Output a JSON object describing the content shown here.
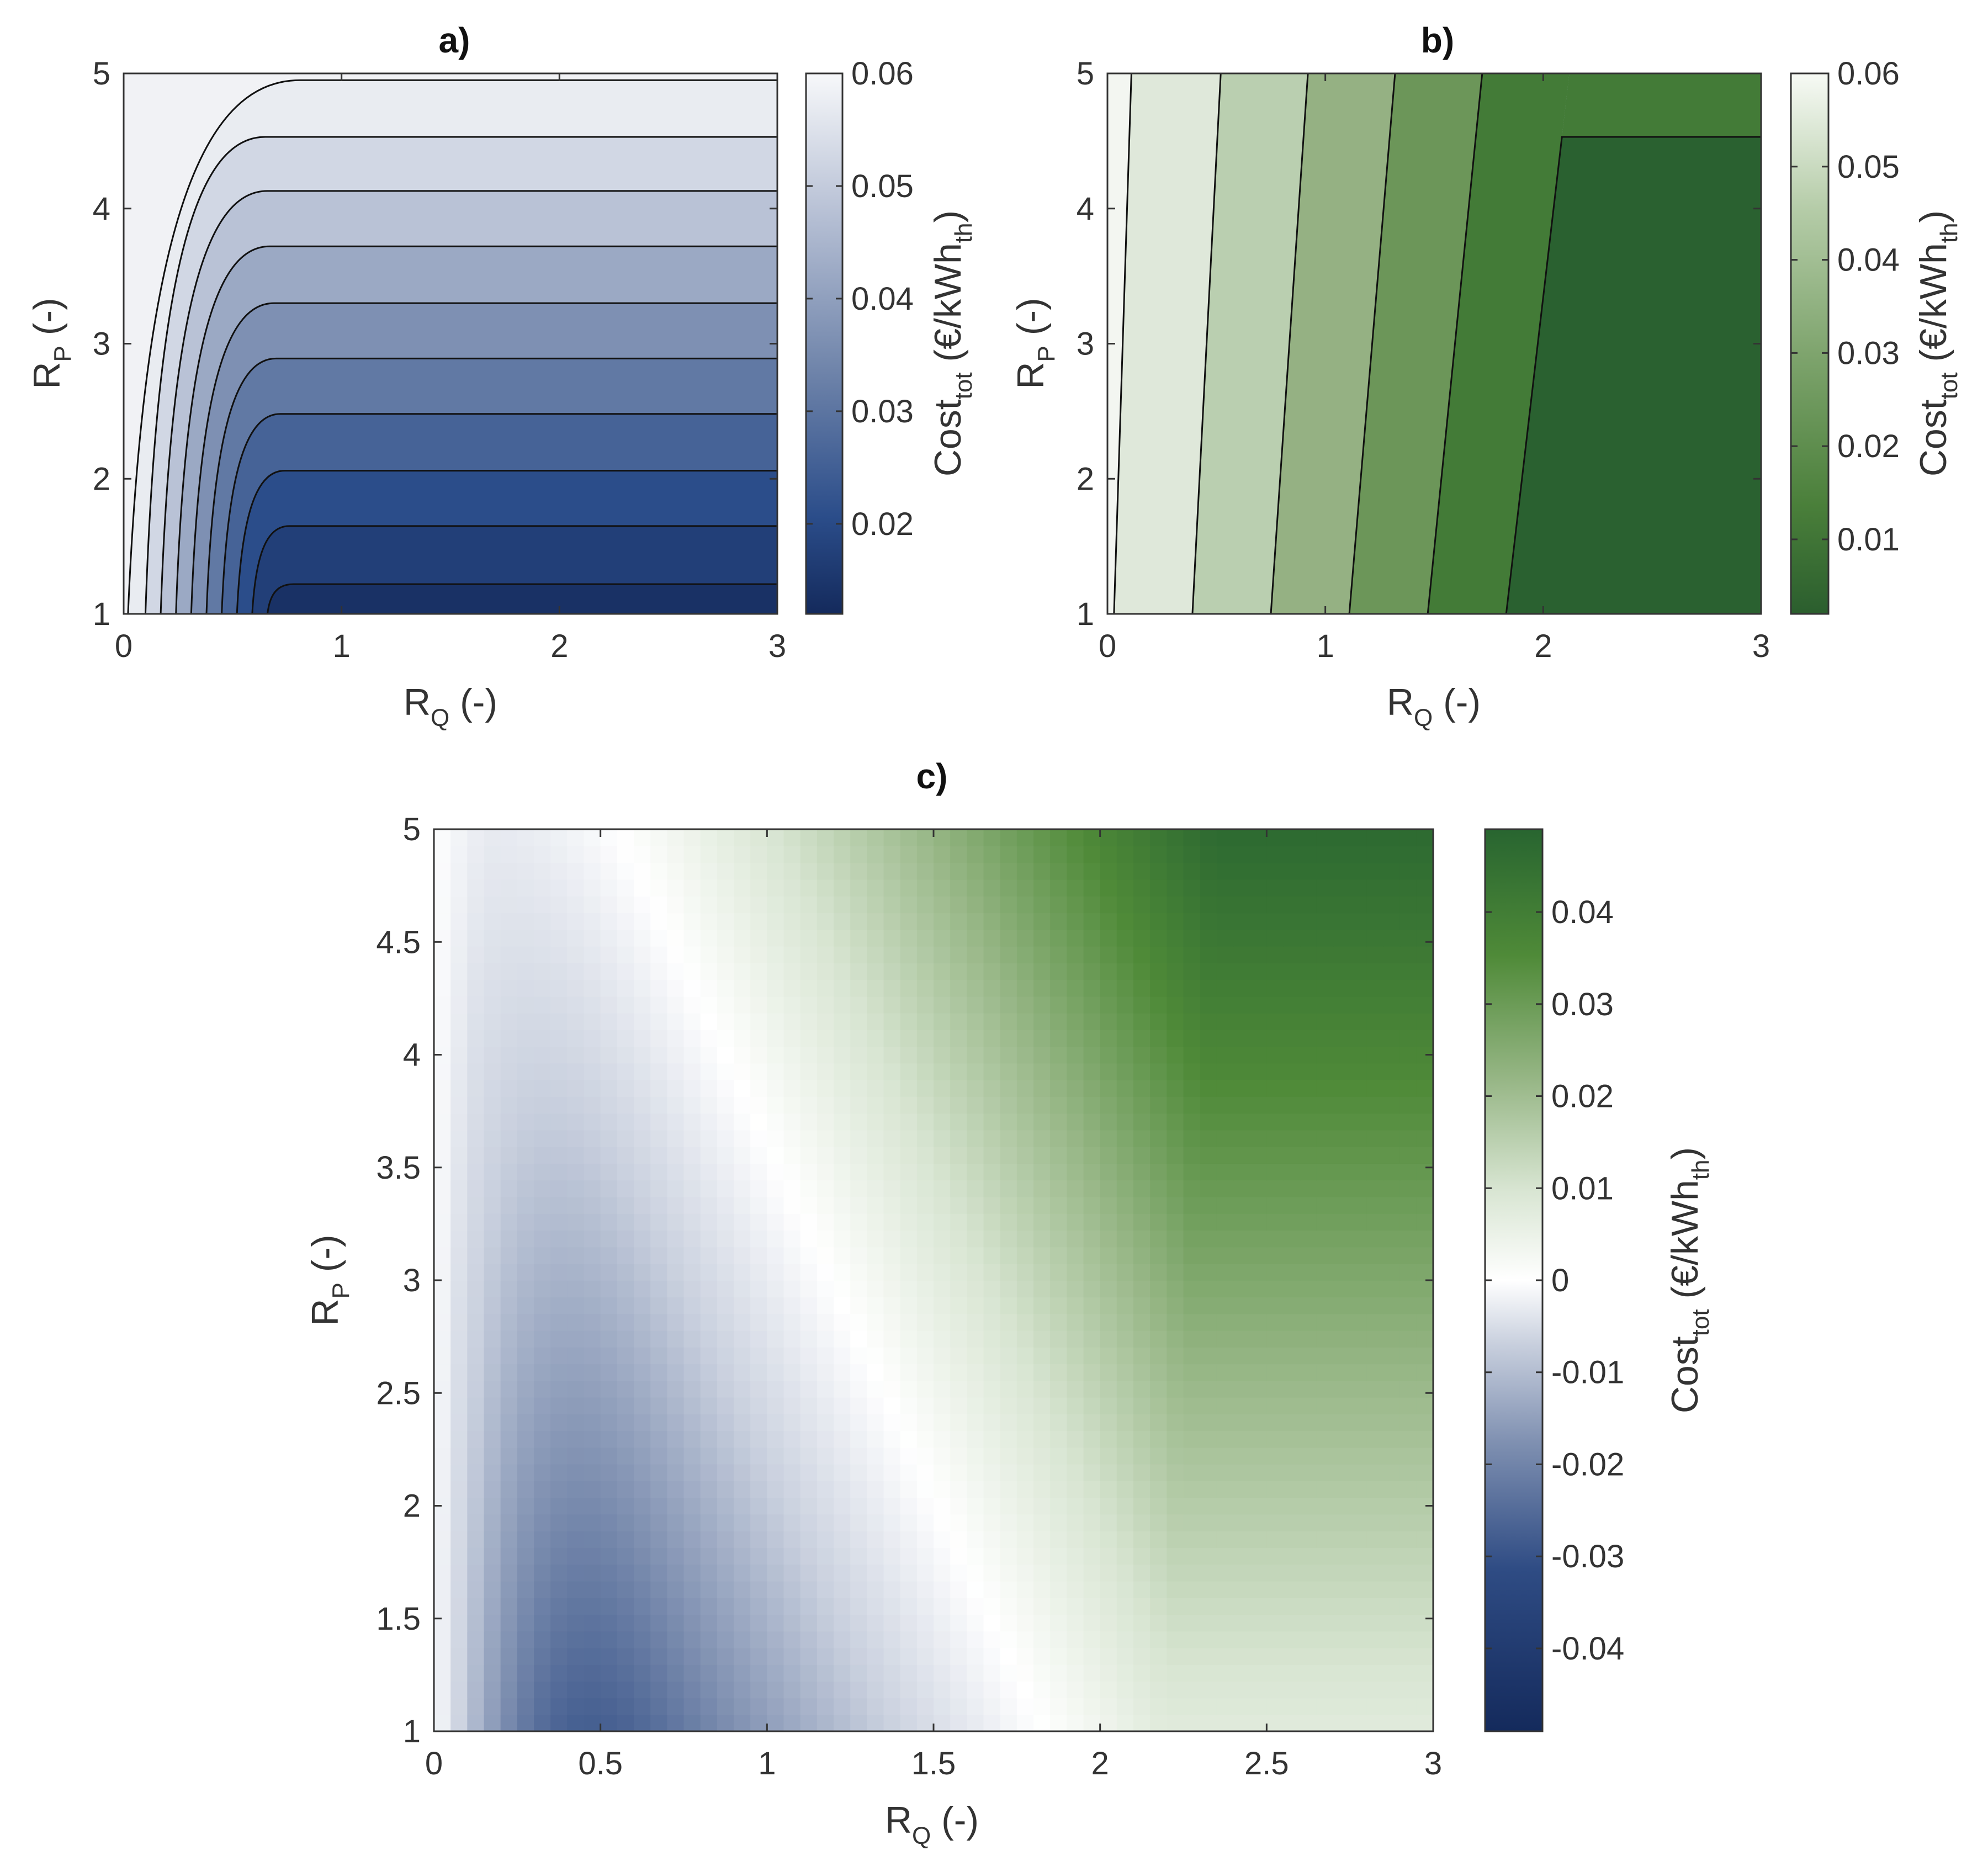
{
  "chart_data": [
    {
      "id": "a",
      "type": "heatmap",
      "title": "a)",
      "xlabel_main": "R",
      "xlabel_sub": "Q",
      "xlabel_tail": " (-)",
      "ylabel_main": "R",
      "ylabel_sub": "P",
      "ylabel_tail": " (-)",
      "xlim": [
        0,
        3
      ],
      "ylim": [
        1,
        5
      ],
      "xticks": [
        "0",
        "1",
        "2",
        "3"
      ],
      "yticks": [
        "1",
        "2",
        "3",
        "4",
        "5"
      ],
      "colorbar_label_main": "Cost",
      "colorbar_label_sub": "tot",
      "colorbar_label_mid": " (€/kWh",
      "colorbar_label_sub2": "th",
      "colorbar_label_end": ")",
      "clim": [
        0.012,
        0.06
      ],
      "colorbar_ticks": [
        "0.02",
        "0.03",
        "0.04",
        "0.05",
        "0.06"
      ],
      "colorbar_tick_values": [
        0.02,
        0.03,
        0.04,
        0.05,
        0.06
      ],
      "colormap": [
        "#142a5c",
        "#2b4d8a",
        "#6f84aa",
        "#b9c2d6",
        "#f5f6f8"
      ],
      "contour_levels_rp": [
        1.22,
        1.65,
        2.06,
        2.48,
        2.89,
        3.3,
        3.72,
        4.13,
        4.53,
        4.95
      ],
      "contour_bend_rq": [
        0.78,
        0.76,
        0.74,
        0.72,
        0.7,
        0.69,
        0.67,
        0.66,
        0.65,
        0.81
      ],
      "contour_start_rq": [
        0.66,
        0.59,
        0.52,
        0.45,
        0.38,
        0.31,
        0.24,
        0.17,
        0.1,
        0.02
      ]
    },
    {
      "id": "b",
      "type": "heatmap",
      "title": "b)",
      "xlabel_main": "R",
      "xlabel_sub": "Q",
      "xlabel_tail": " (-)",
      "ylabel_main": "R",
      "ylabel_sub": "P",
      "ylabel_tail": " (-)",
      "xlim": [
        0,
        3
      ],
      "ylim": [
        1,
        5
      ],
      "xticks": [
        "0",
        "1",
        "2",
        "3"
      ],
      "yticks": [
        "1",
        "2",
        "3",
        "4",
        "5"
      ],
      "colorbar_label_main": "Cost",
      "colorbar_label_sub": "tot",
      "colorbar_label_mid": " (€/kWh",
      "colorbar_label_sub2": "th",
      "colorbar_label_end": ")",
      "clim": [
        0.002,
        0.06
      ],
      "colorbar_ticks": [
        "0.01",
        "0.02",
        "0.03",
        "0.04",
        "0.05",
        "0.06"
      ],
      "colorbar_tick_values": [
        0.01,
        0.02,
        0.03,
        0.04,
        0.05,
        0.06
      ],
      "colormap": [
        "#2b5e2e",
        "#4a7f3a",
        "#7ea46d",
        "#b5cca8",
        "#f5f8f3"
      ],
      "contour_lines": [
        {
          "rq_bottom": 0.03,
          "rq_top": 0.11
        },
        {
          "rq_bottom": 0.39,
          "rq_top": 0.52
        },
        {
          "rq_bottom": 0.75,
          "rq_top": 0.92
        },
        {
          "rq_bottom": 1.11,
          "rq_top": 1.32
        },
        {
          "rq_bottom": 1.47,
          "rq_top": 1.72
        },
        {
          "rq_bottom": 1.83,
          "rq_top": 2.12
        }
      ],
      "contour_plateau_rp": 4.53,
      "band_colors": [
        "#f3f6f1",
        "#dfe8da",
        "#bacfb0",
        "#95b183",
        "#6c9659",
        "#437b37",
        "#2a6130"
      ]
    },
    {
      "id": "c",
      "type": "heatmap",
      "title": "c)",
      "xlabel_main": "R",
      "xlabel_sub": "Q",
      "xlabel_tail": " (-)",
      "ylabel_main": "R",
      "ylabel_sub": "P",
      "ylabel_tail": " (-)",
      "xlim": [
        0,
        3
      ],
      "ylim": [
        1,
        5
      ],
      "xticks": [
        "0",
        "0.5",
        "1",
        "1.5",
        "2",
        "2.5",
        "3"
      ],
      "xtick_values": [
        0,
        0.5,
        1,
        1.5,
        2,
        2.5,
        3
      ],
      "yticks": [
        "1",
        "1.5",
        "2",
        "2.5",
        "3",
        "3.5",
        "4",
        "4.5",
        "5"
      ],
      "ytick_values": [
        1,
        1.5,
        2,
        2.5,
        3,
        3.5,
        4,
        4.5,
        5
      ],
      "colorbar_label_main": "Cost",
      "colorbar_label_sub": "tot",
      "colorbar_label_mid": " (€/kWh",
      "colorbar_label_sub2": "th",
      "colorbar_label_end": ")",
      "clim": [
        -0.049,
        0.049
      ],
      "colorbar_ticks": [
        "-0.04",
        "-0.03",
        "-0.02",
        "-0.01",
        "0",
        "0.01",
        "0.02",
        "0.03",
        "0.04"
      ],
      "colorbar_tick_values": [
        -0.04,
        -0.03,
        -0.02,
        -0.01,
        0,
        0.01,
        0.02,
        0.03,
        0.04
      ],
      "colormap_negative": [
        "#ffffff",
        "#c9d0de",
        "#7f90b1",
        "#2f4c84",
        "#142a5c"
      ],
      "colormap_positive": [
        "#ffffff",
        "#d8e5d2",
        "#98b787",
        "#4f8a38",
        "#286530"
      ]
    }
  ]
}
